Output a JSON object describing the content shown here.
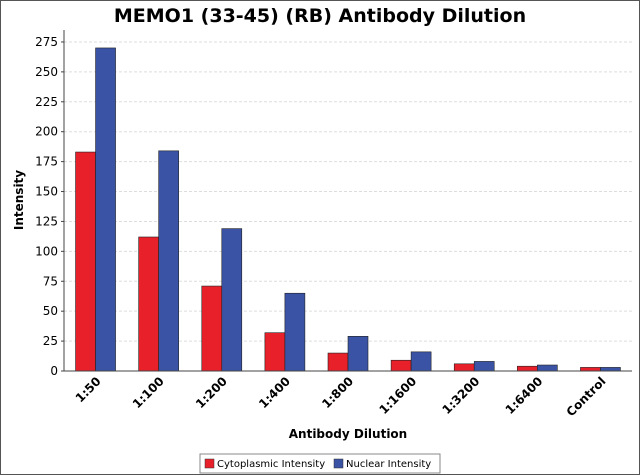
{
  "chart_data": {
    "type": "bar",
    "title": "MEMO1 (33-45) (RB) Antibody Dilution",
    "xlabel": "Antibody Dilution",
    "ylabel": "Intensity",
    "ylim": [
      0,
      285
    ],
    "yticks": [
      0,
      25,
      50,
      75,
      100,
      125,
      150,
      175,
      200,
      225,
      250,
      275
    ],
    "grid": true,
    "legend_position": "bottom-center",
    "categories": [
      "1:50",
      "1:100",
      "1:200",
      "1:400",
      "1:800",
      "1:1600",
      "1:3200",
      "1:6400",
      "Control"
    ],
    "series": [
      {
        "name": "Cytoplasmic Intensity",
        "color": "#e8202a",
        "values": [
          183,
          112,
          71,
          32,
          15,
          9,
          6,
          4,
          3
        ]
      },
      {
        "name": "Nuclear Intensity",
        "color": "#3a53a4",
        "values": [
          270,
          184,
          119,
          65,
          29,
          16,
          8,
          5,
          3
        ]
      }
    ]
  }
}
